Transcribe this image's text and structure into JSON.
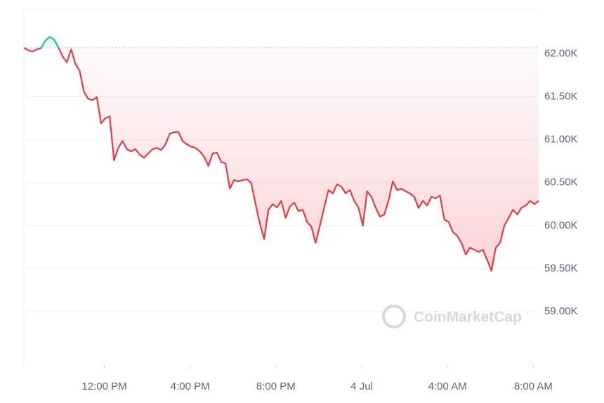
{
  "chart_data": {
    "type": "line",
    "watermark": "CoinMarketCap",
    "x": [
      8.25,
      8.45,
      8.65,
      8.85,
      9.05,
      9.25,
      9.45,
      9.65,
      9.85,
      10.05,
      10.25,
      10.45,
      10.65,
      10.85,
      11.05,
      11.25,
      11.45,
      11.65,
      11.85,
      12.05,
      12.25,
      12.45,
      12.65,
      12.85,
      13.05,
      13.25,
      13.45,
      13.65,
      13.85,
      14.05,
      14.25,
      14.45,
      14.65,
      14.85,
      15.05,
      15.25,
      15.45,
      15.65,
      15.85,
      16.05,
      16.25,
      16.45,
      16.65,
      16.85,
      17.05,
      17.25,
      17.45,
      17.65,
      17.85,
      18.05,
      18.25,
      18.45,
      18.65,
      18.85,
      19.05,
      19.25,
      19.45,
      19.65,
      19.85,
      20.05,
      20.25,
      20.45,
      20.65,
      20.85,
      21.05,
      21.25,
      21.45,
      21.65,
      21.85,
      22.05,
      22.25,
      22.45,
      22.65,
      22.85,
      23.05,
      23.25,
      23.45,
      23.65,
      23.85,
      24.05,
      24.25,
      24.45,
      24.65,
      24.85,
      25.05,
      25.25,
      25.45,
      25.65,
      25.85,
      26.05,
      26.25,
      26.45,
      26.65,
      26.85,
      27.05,
      27.25,
      27.45,
      27.65,
      27.85,
      28.05,
      28.25,
      28.45,
      28.65,
      28.85,
      29.05,
      29.25,
      29.45,
      29.65,
      29.85,
      30.05,
      30.25,
      30.45,
      30.65,
      30.85,
      31.05,
      31.25,
      31.45,
      31.65,
      31.85,
      32.05,
      32.25
    ],
    "series": [
      {
        "up_color": "#16c784",
        "color": "#ea3943",
        "values": [
          62070,
          62040,
          62025,
          62050,
          62065,
          62150,
          62195,
          62165,
          62080,
          61970,
          61900,
          62050,
          61885,
          61800,
          61560,
          61475,
          61460,
          61495,
          61190,
          61250,
          61270,
          60760,
          60905,
          60985,
          60890,
          60865,
          60890,
          60825,
          60790,
          60840,
          60890,
          60905,
          60880,
          60945,
          61070,
          61085,
          61090,
          60985,
          60945,
          60920,
          60905,
          60865,
          60805,
          60695,
          60840,
          60850,
          60740,
          60725,
          60430,
          60530,
          60515,
          60530,
          60540,
          60495,
          60250,
          60025,
          59845,
          60185,
          60250,
          60210,
          60290,
          60090,
          60220,
          60270,
          60170,
          60185,
          60045,
          59990,
          59800,
          60000,
          60210,
          60415,
          60375,
          60480,
          60455,
          60375,
          60415,
          60290,
          60210,
          60000,
          60400,
          60335,
          60210,
          60105,
          60130,
          60290,
          60515,
          60415,
          60430,
          60400,
          60375,
          60335,
          60205,
          60290,
          60235,
          60335,
          60320,
          60350,
          60070,
          60045,
          59925,
          59885,
          59800,
          59665,
          59745,
          59720,
          59695,
          59720,
          59600,
          59475,
          59745,
          59800,
          60000,
          60090,
          60185,
          60130,
          60210,
          60235,
          60290,
          60250,
          60290
        ]
      }
    ],
    "xlim": [
      8.25,
      32.25
    ],
    "xticks": [
      {
        "value": 12,
        "label": "12:00 PM"
      },
      {
        "value": 16,
        "label": "4:00 PM"
      },
      {
        "value": 20,
        "label": "8:00 PM"
      },
      {
        "value": 24,
        "label": "4 Jul"
      },
      {
        "value": 28,
        "label": "4:00 AM"
      },
      {
        "value": 32,
        "label": "8:00 AM"
      }
    ],
    "ylim": [
      58380,
      62510
    ],
    "yticks": [
      {
        "value": 59000,
        "label": "59.00K"
      },
      {
        "value": 59500,
        "label": "59.50K"
      },
      {
        "value": 60000,
        "label": "60.00K"
      },
      {
        "value": 60500,
        "label": "60.50K"
      },
      {
        "value": 61000,
        "label": "61.00K"
      },
      {
        "value": 61500,
        "label": "61.50K"
      },
      {
        "value": 62000,
        "label": "62.00K"
      }
    ],
    "grid": true
  }
}
